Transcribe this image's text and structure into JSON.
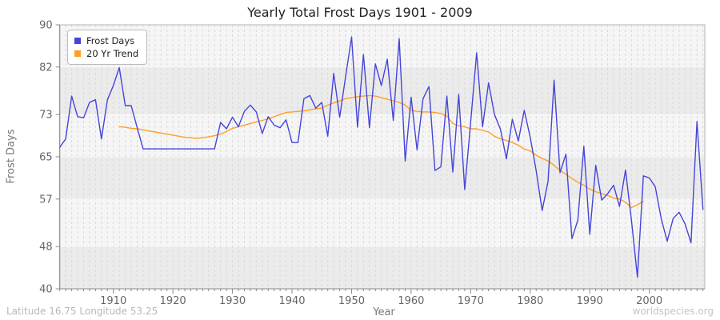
{
  "chart_data": {
    "type": "line",
    "title": "Yearly Total Frost Days 1901 - 2009",
    "xlabel": "Year",
    "ylabel": "Frost Days",
    "x_range": [
      1901,
      2009
    ],
    "ylim": [
      40,
      90
    ],
    "y_ticks": [
      90,
      82,
      73,
      65,
      57,
      48,
      40
    ],
    "x_ticks": [
      1910,
      1920,
      1930,
      1940,
      1950,
      1960,
      1970,
      1980,
      1990,
      2000
    ],
    "grid": "vertical dashed line per year, dashed horizontal line per y tick, alternating bands",
    "legend_position": "top-left",
    "series": [
      {
        "name": "Frost Days",
        "color": "#4545db",
        "start_year": 1901,
        "values": [
          66.8,
          68.4,
          76.5,
          72.6,
          72.4,
          75.3,
          75.8,
          68.4,
          75.8,
          78.5,
          81.9,
          74.7,
          74.7,
          70.5,
          66.5,
          66.5,
          66.5,
          66.5,
          66.5,
          66.5,
          66.5,
          66.5,
          66.5,
          66.5,
          66.5,
          66.5,
          66.5,
          71.5,
          70.3,
          72.5,
          70.7,
          73.6,
          74.8,
          73.5,
          69.4,
          72.6,
          71.0,
          70.5,
          72.0,
          67.7,
          67.7,
          76.0,
          76.6,
          74.2,
          75.3,
          68.9,
          80.8,
          72.5,
          80.2,
          87.7,
          70.6,
          84.4,
          70.5,
          82.6,
          78.5,
          83.5,
          71.9,
          87.4,
          64.2,
          76.3,
          66.3,
          76.0,
          78.3,
          62.4,
          63.1,
          76.5,
          62.1,
          76.8,
          58.8,
          71.5,
          84.7,
          70.7,
          79.0,
          73.0,
          70.2,
          64.6,
          72.1,
          68.0,
          73.8,
          68.7,
          62.4,
          54.8,
          60.4,
          79.5,
          62.0,
          65.5,
          49.5,
          53.0,
          67.0,
          50.3,
          63.4,
          56.8,
          58.0,
          59.6,
          55.6,
          62.5,
          53.0,
          42.2,
          61.4,
          61.0,
          59.3,
          53.3,
          49.0,
          53.3,
          54.5,
          52.3,
          48.7,
          71.7,
          55.0
        ]
      },
      {
        "name": "20 Yr Trend",
        "color": "#ffa026",
        "start_year": 1911,
        "values": [
          70.7,
          70.6,
          70.4,
          70.3,
          70.1,
          69.9,
          69.7,
          69.5,
          69.3,
          69.1,
          68.9,
          68.7,
          68.6,
          68.5,
          68.6,
          68.8,
          69.0,
          69.3,
          69.8,
          70.4,
          70.7,
          71.0,
          71.3,
          71.6,
          71.9,
          72.2,
          72.6,
          73.0,
          73.4,
          73.5,
          73.6,
          73.7,
          73.9,
          74.1,
          74.2,
          74.8,
          75.2,
          75.6,
          76.0,
          76.2,
          76.4,
          76.5,
          76.6,
          76.5,
          76.2,
          75.9,
          75.6,
          75.3,
          74.8,
          73.8,
          73.6,
          73.5,
          73.5,
          73.4,
          73.2,
          72.7,
          71.3,
          70.9,
          70.7,
          70.3,
          70.3,
          70.0,
          69.7,
          68.9,
          68.4,
          68.1,
          67.7,
          67.2,
          66.5,
          66.1,
          65.3,
          64.7,
          64.2,
          63.4,
          62.4,
          61.7,
          60.9,
          60.2,
          59.6,
          58.9,
          58.4,
          58.0,
          57.7,
          57.2,
          57.0,
          56.4,
          55.4,
          55.9,
          56.6
        ]
      }
    ]
  },
  "footer": {
    "left": "Latitude 16.75 Longitude 53.25",
    "right": "worldspecies.org"
  },
  "colors": {
    "plot_band_light": "#f5f5f5",
    "plot_band_dark": "#ebebeb",
    "grid_vertical": "#d9d9d9",
    "grid_horizontal": "#fbfbfb",
    "frame": "#b5b5b5",
    "axis": "#888888",
    "tick_label": "#666666"
  }
}
